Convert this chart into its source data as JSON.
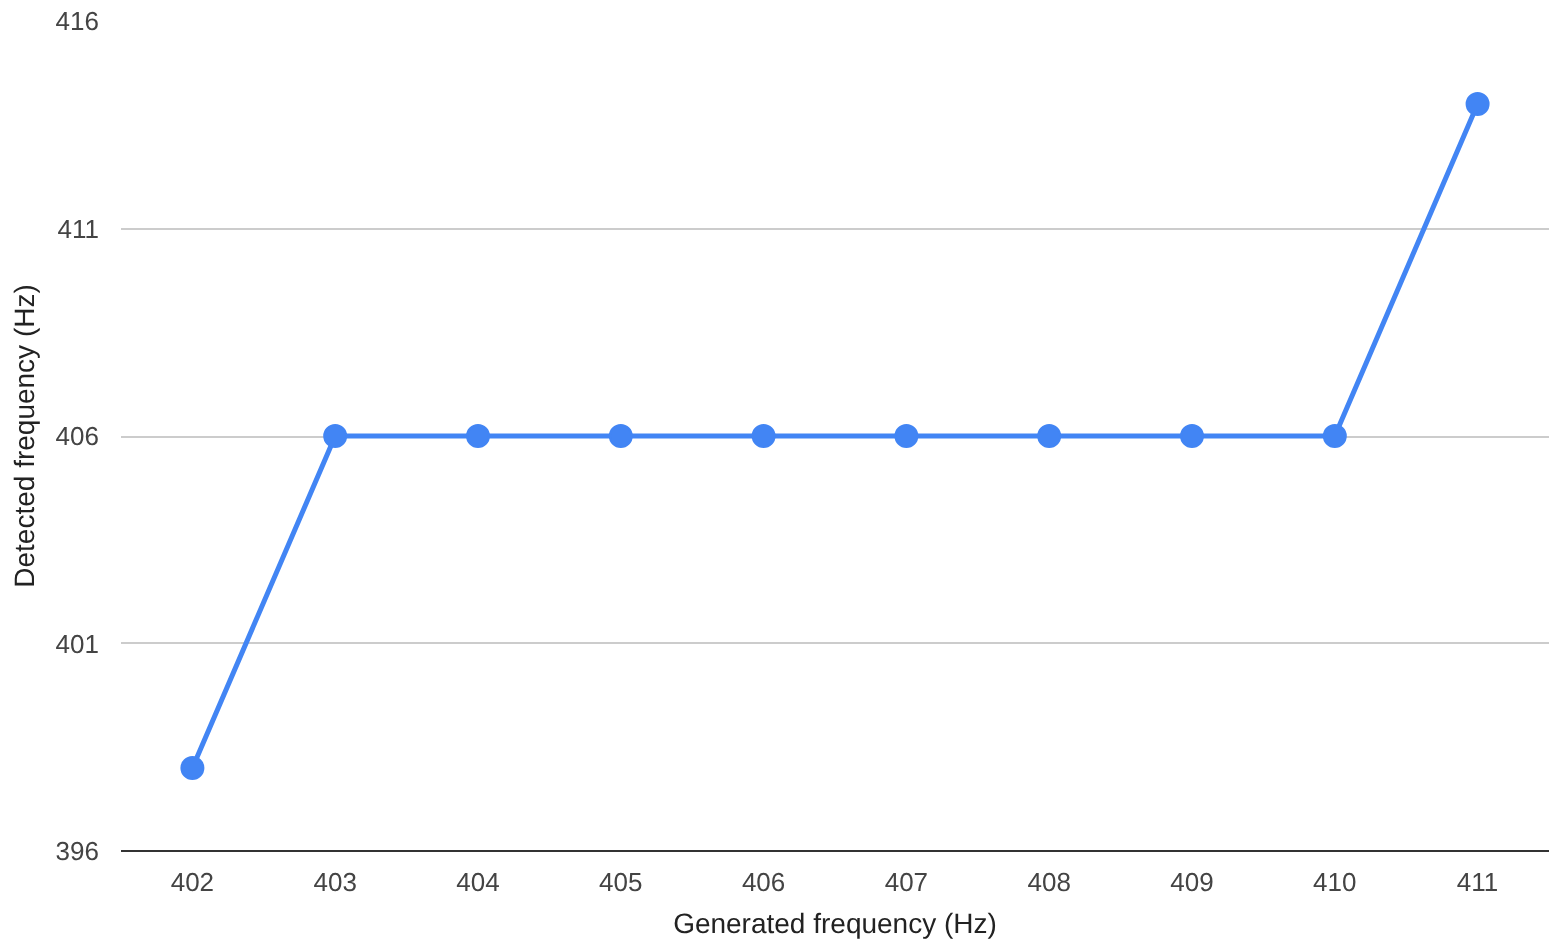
{
  "chart_data": {
    "type": "line",
    "xlabel": "Generated frequency (Hz)",
    "ylabel": "Detected frequency (Hz)",
    "categories": [
      "402",
      "403",
      "404",
      "405",
      "406",
      "407",
      "408",
      "409",
      "410",
      "411"
    ],
    "series": [
      {
        "color": "#4285f4",
        "values": [
          398,
          406,
          406,
          406,
          406,
          406,
          406,
          406,
          406,
          414
        ]
      }
    ],
    "ylim": [
      396,
      416
    ],
    "yticks": [
      396,
      401,
      406,
      411,
      416
    ],
    "grid": "y",
    "marker": "circle"
  }
}
